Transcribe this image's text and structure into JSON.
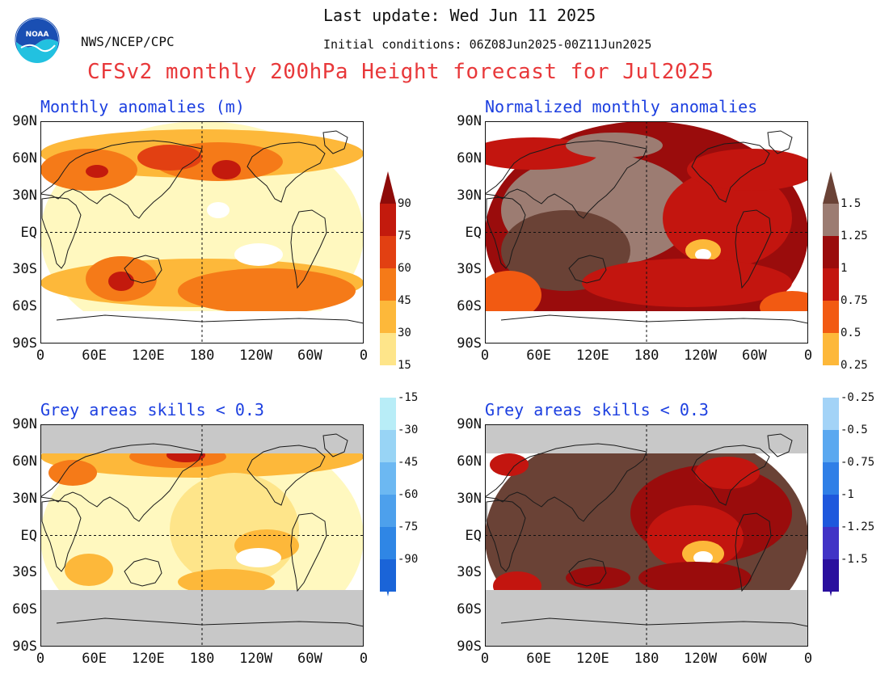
{
  "header": {
    "last_update": "Last update: Wed Jun 11 2025",
    "agency": "NWS/NCEP/CPC",
    "initial_conditions": "Initial conditions: 06Z08Jun2025-00Z11Jun2025",
    "title": "CFSv2 monthly 200hPa Height forecast for Jul2025",
    "logo_text": "NOAA"
  },
  "panels": {
    "top_left_title": "Monthly anomalies (m)",
    "top_right_title": "Normalized monthly anomalies",
    "bottom_left_title": "Grey areas skills < 0.3",
    "bottom_right_title": "Grey areas skills < 0.3"
  },
  "axes": {
    "lat_labels": [
      "90N",
      "60N",
      "30N",
      "EQ",
      "30S",
      "60S",
      "90S"
    ],
    "lon_labels": [
      "0",
      "60E",
      "120E",
      "180",
      "120W",
      "60W",
      "0"
    ]
  },
  "colorbar_left": {
    "labels": [
      "90",
      "75",
      "60",
      "45",
      "30",
      "15",
      "-15",
      "-30",
      "-45",
      "-60",
      "-75",
      "-90"
    ]
  },
  "colorbar_right": {
    "labels": [
      "1.5",
      "1.25",
      "1",
      "0.75",
      "0.5",
      "0.25",
      "-0.25",
      "-0.5",
      "-0.75",
      "-1",
      "-1.25",
      "-1.5"
    ]
  },
  "colors": {
    "warm": [
      "#fff8bf",
      "#fee58a",
      "#fdb83a",
      "#f57a18",
      "#e24012",
      "#c31a0d",
      "#8e0b09"
    ],
    "normalized_warm": [
      "#fee58a",
      "#fdb83a",
      "#f25a12",
      "#c3150f",
      "#9a0c0c",
      "#9c7c72",
      "#6a4236"
    ],
    "cool": [
      "#b8edf7",
      "#98d4f5",
      "#6cb8f2",
      "#4da0ec",
      "#2f86e5",
      "#1a64d8"
    ],
    "normalized_cool": [
      "#a3d3f7",
      "#5aa8f0",
      "#2f7fe7",
      "#1e58dd",
      "#4133c6",
      "#2a0f9e"
    ],
    "grey_mask": "#c8c8c8",
    "title_red": "#e8383a",
    "panel_title_blue": "#1c3fe0"
  }
}
